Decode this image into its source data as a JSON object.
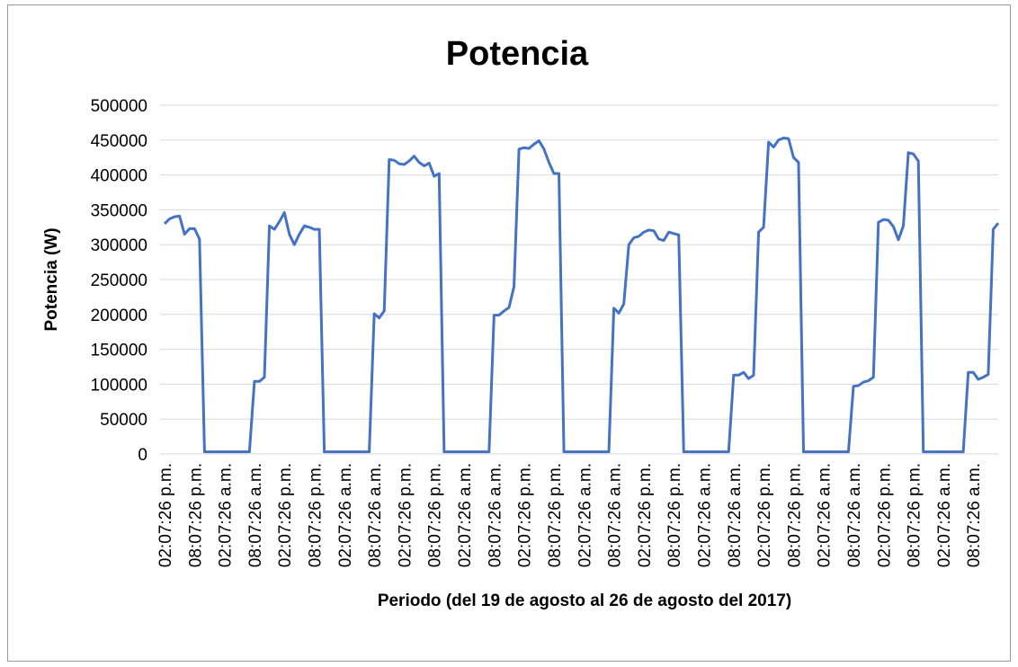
{
  "chart_data": {
    "type": "line",
    "title": "Potencia",
    "y_label": "Potencia (W)",
    "x_label": "Periodo (del  19 de agosto al 26 de agosto del 2017)",
    "categories": [
      "02:07:26 p.m.",
      null,
      null,
      null,
      null,
      null,
      "08:07:26 p.m.",
      null,
      null,
      null,
      null,
      null,
      "02:07:26 a.m.",
      null,
      null,
      null,
      null,
      null,
      "08:07:26 a.m.",
      null,
      null,
      null,
      null,
      null,
      "02:07:26 p.m.",
      null,
      null,
      null,
      null,
      null,
      "08:07:26 p.m.",
      null,
      null,
      null,
      null,
      null,
      "02:07:26 a.m.",
      null,
      null,
      null,
      null,
      null,
      "08:07:26 a.m.",
      null,
      null,
      null,
      null,
      null,
      "02:07:26 p.m.",
      null,
      null,
      null,
      null,
      null,
      "08:07:26 p.m.",
      null,
      null,
      null,
      null,
      null,
      "02:07:26 a.m.",
      null,
      null,
      null,
      null,
      null,
      "08:07:26 a.m.",
      null,
      null,
      null,
      null,
      null,
      "02:07:26 p.m.",
      null,
      null,
      null,
      null,
      null,
      "08:07:26 p.m.",
      null,
      null,
      null,
      null,
      null,
      "02:07:26 a.m.",
      null,
      null,
      null,
      null,
      null,
      "08:07:26 a.m.",
      null,
      null,
      null,
      null,
      null,
      "02:07:26 p.m.",
      null,
      null,
      null,
      null,
      null,
      "08:07:26 p.m.",
      null,
      null,
      null,
      null,
      null,
      "02:07:26 a.m.",
      null,
      null,
      null,
      null,
      null,
      "08:07:26 a.m.",
      null,
      null,
      null,
      null,
      null,
      "02:07:26 p.m.",
      null,
      null,
      null,
      null,
      null,
      "08:07:26 p.m.",
      null,
      null,
      null,
      null,
      null,
      "02:07:26 a.m.",
      null,
      null,
      null,
      null,
      null,
      "08:07:26 a.m.",
      null,
      null,
      null,
      null,
      null,
      "02:07:26 p.m.",
      null,
      null,
      null,
      null,
      null,
      "08:07:26 p.m.",
      null,
      null,
      null,
      null,
      null,
      "02:07:26 a.m.",
      null,
      null,
      null,
      null,
      null,
      "08:07:26 a.m.",
      null,
      null,
      null,
      null,
      null
    ],
    "values": [
      330000,
      337000,
      340000,
      341000,
      315000,
      323000,
      323000,
      308000,
      3000,
      3000,
      3000,
      3000,
      3000,
      3000,
      3000,
      3000,
      3000,
      3000,
      104000,
      104000,
      110000,
      327000,
      322000,
      333000,
      346000,
      315000,
      300000,
      315000,
      327000,
      325000,
      322000,
      322000,
      3000,
      3000,
      3000,
      3000,
      3000,
      3000,
      3000,
      3000,
      3000,
      3000,
      201000,
      195000,
      205000,
      422000,
      421000,
      416000,
      415000,
      420000,
      427000,
      418000,
      413000,
      417000,
      398000,
      402000,
      3000,
      3000,
      3000,
      3000,
      3000,
      3000,
      3000,
      3000,
      3000,
      3000,
      199000,
      199000,
      205000,
      210000,
      240000,
      437000,
      439000,
      438000,
      444000,
      449000,
      437000,
      418000,
      402000,
      402000,
      3000,
      3000,
      3000,
      3000,
      3000,
      3000,
      3000,
      3000,
      3000,
      3000,
      209000,
      202000,
      215000,
      300000,
      310000,
      312000,
      318000,
      321000,
      320000,
      308000,
      306000,
      318000,
      316000,
      314000,
      3000,
      3000,
      3000,
      3000,
      3000,
      3000,
      3000,
      3000,
      3000,
      3000,
      113000,
      113000,
      117000,
      108000,
      113000,
      318000,
      325000,
      447000,
      440000,
      450000,
      453000,
      452000,
      425000,
      418000,
      3000,
      3000,
      3000,
      3000,
      3000,
      3000,
      3000,
      3000,
      3000,
      3000,
      97000,
      98000,
      103000,
      105000,
      110000,
      332000,
      336000,
      335000,
      326000,
      307000,
      327000,
      432000,
      430000,
      420000,
      3000,
      3000,
      3000,
      3000,
      3000,
      3000,
      3000,
      3000,
      3000,
      117000,
      117000,
      107000,
      110000,
      114000,
      322000,
      331000
    ],
    "color": "#4472c4",
    "ylim": [
      0,
      500000
    ],
    "yticks": [
      0,
      50000,
      100000,
      150000,
      200000,
      250000,
      300000,
      350000,
      400000,
      450000,
      500000
    ],
    "grid": true
  }
}
